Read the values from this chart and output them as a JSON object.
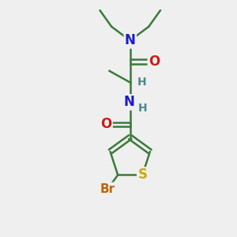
{
  "background_color": "#efefef",
  "bond_color": "#3a7a3a",
  "bond_width": 1.8,
  "atom_colors": {
    "N": "#1a1acc",
    "O": "#cc1a1a",
    "S": "#ccaa00",
    "Br": "#bb6600",
    "H": "#4a8a8a",
    "C": "#3a7a3a"
  },
  "font_size": 11
}
